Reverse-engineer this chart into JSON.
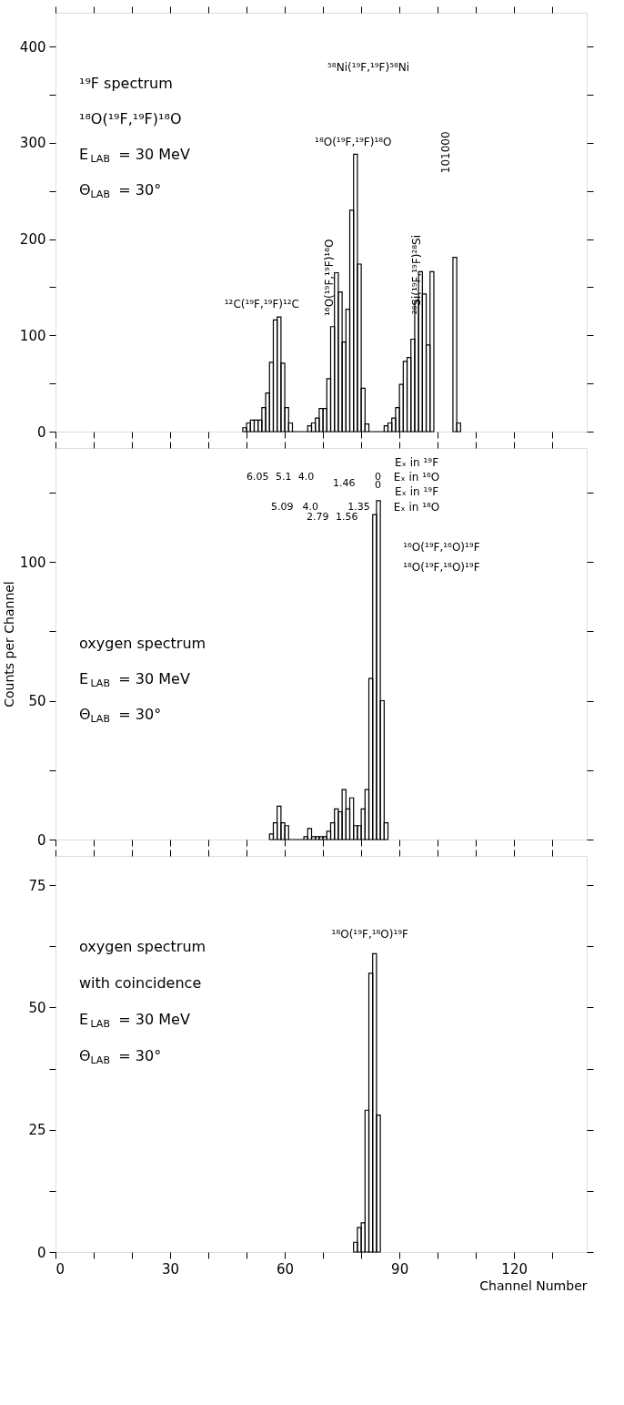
{
  "chart_data": [
    {
      "type": "histogram",
      "color": "#000000",
      "bins": [
        49,
        50,
        51,
        52,
        53,
        54,
        55,
        56,
        57,
        58,
        59,
        60,
        61,
        62,
        63,
        64,
        65,
        66,
        67,
        68,
        69,
        70,
        71,
        72,
        73,
        74,
        75,
        76,
        77,
        78,
        79,
        80,
        81,
        82,
        83,
        84,
        85,
        86,
        87,
        88,
        89,
        90,
        91,
        92,
        93,
        94,
        95,
        96,
        97,
        98,
        99,
        100,
        101,
        102,
        103,
        104,
        105,
        106
      ],
      "values": [
        4,
        9,
        12,
        12,
        12,
        25,
        40,
        72,
        116,
        119,
        71,
        25,
        9,
        0,
        0,
        0,
        0,
        6,
        9,
        14,
        24,
        24,
        55,
        109,
        165,
        145,
        93,
        127,
        230,
        288,
        174,
        45,
        8,
        0,
        0,
        0,
        0,
        6,
        9,
        14,
        25,
        49,
        73,
        77,
        96,
        136,
        166,
        143,
        90,
        166,
        null,
        null,
        null,
        null,
        null,
        181,
        9
      ],
      "xlim": [
        0,
        139
      ],
      "xticks": [
        {
          "value": 0,
          "label": null
        },
        {
          "value": 10,
          "label": null
        },
        {
          "value": 20,
          "label": null
        },
        {
          "value": 30,
          "label": null
        },
        {
          "value": 40,
          "label": null
        },
        {
          "value": 50,
          "label": null
        },
        {
          "value": 60,
          "label": null
        },
        {
          "value": 70,
          "label": null
        },
        {
          "value": 80,
          "label": null
        },
        {
          "value": 90,
          "label": null
        },
        {
          "value": 100,
          "label": null
        },
        {
          "value": 110,
          "label": null
        },
        {
          "value": 120,
          "label": null
        },
        {
          "value": 130,
          "label": null
        }
      ],
      "ylim": [
        0,
        435
      ],
      "yticks": [
        0,
        {
          "value": 50,
          "label": null
        },
        100,
        {
          "value": 150,
          "label": null
        },
        200,
        {
          "value": 250,
          "label": null
        },
        300,
        {
          "value": 350,
          "label": null
        },
        400
      ],
      "tick_labels": "y",
      "annotations": [
        "¹⁹F spectrum",
        "¹⁸O(¹⁹F,¹⁹F)¹⁸O",
        "E$_{LAB}$ = 30 MeV",
        "Θ$_{LAB}$ = 30°",
        "¹²C(¹⁹F,¹⁹F)¹²C",
        "¹⁶O(¹⁹F,¹⁹F)¹⁶O",
        "¹⁸O(¹⁹F,¹⁹F)¹⁸O",
        "²⁸Si(¹⁹F,¹⁹F)²⁸Si",
        "⁵⁸Ni(¹⁹F,¹⁹F)⁵⁸Ni",
        "101000"
      ]
    },
    {
      "type": "histogram",
      "color": "#000000",
      "bins": [
        56,
        57,
        58,
        59,
        60,
        61,
        62,
        63,
        64,
        65,
        66,
        67,
        68,
        69,
        70,
        71,
        72,
        73,
        74,
        75,
        76,
        77,
        78,
        79,
        80,
        81,
        82,
        83,
        84,
        85,
        86,
        87
      ],
      "values": [
        2,
        6,
        12,
        6,
        5,
        0,
        0,
        0,
        0,
        1,
        4,
        1,
        1,
        1,
        1,
        3,
        6,
        11,
        10,
        18,
        11,
        15,
        5,
        5,
        11,
        18,
        58,
        117,
        122,
        50,
        6
      ],
      "xlim": [
        0,
        139
      ],
      "xticks": [
        {
          "value": 0,
          "label": null
        },
        {
          "value": 10,
          "label": null
        },
        {
          "value": 20,
          "label": null
        },
        {
          "value": 30,
          "label": null
        },
        {
          "value": 40,
          "label": null
        },
        {
          "value": 50,
          "label": null
        },
        {
          "value": 60,
          "label": null
        },
        {
          "value": 70,
          "label": null
        },
        {
          "value": 80,
          "label": null
        },
        {
          "value": 90,
          "label": null
        },
        {
          "value": 100,
          "label": null
        },
        {
          "value": 110,
          "label": null
        },
        {
          "value": 120,
          "label": null
        },
        {
          "value": 130,
          "label": null
        }
      ],
      "ylim": [
        0,
        141
      ],
      "yticks": [
        0,
        {
          "value": 25,
          "label": null
        },
        50,
        {
          "value": 75,
          "label": null
        },
        100,
        {
          "value": 125,
          "label": null
        }
      ],
      "tick_labels": "y",
      "ylabel": "Counts per Channel",
      "annotations": [
        "oxygen spectrum",
        "E$_{LAB}$ = 30 MeV",
        "Θ$_{LAB}$ = 30°",
        "Eₓ in ¹⁹F",
        "6.05",
        "5.1",
        "4.0",
        "1.46",
        "0",
        "Eₓ in ¹⁶O",
        "0",
        "Eₓ in ¹⁹F",
        "5.09",
        "4.0",
        "1.35",
        "2.79",
        "1.56",
        "Eₓ in ¹⁸O",
        "¹⁶O(¹⁹F,¹⁶O)¹⁹F",
        "¹⁸O(¹⁹F,¹⁸O)¹⁹F"
      ]
    },
    {
      "type": "histogram",
      "color": "#000000",
      "bins": [
        78,
        79,
        80,
        81,
        82,
        83,
        84,
        85
      ],
      "values": [
        2,
        5,
        6,
        29,
        57,
        61,
        28
      ],
      "xlim": [
        0,
        139
      ],
      "xticks": [
        0,
        {
          "value": 10,
          "label": null
        },
        {
          "value": 20,
          "label": null
        },
        30,
        {
          "value": 40,
          "label": null
        },
        {
          "value": 50,
          "label": null
        },
        60,
        {
          "value": 70,
          "label": null
        },
        {
          "value": 80,
          "label": null
        },
        90,
        {
          "value": 100,
          "label": null
        },
        {
          "value": 110,
          "label": null
        },
        120,
        {
          "value": 130,
          "label": null
        }
      ],
      "ylim": [
        0,
        81
      ],
      "yticks": [
        0,
        {
          "value": 12.5,
          "label": null
        },
        25,
        {
          "value": 37.5,
          "label": null
        },
        50,
        {
          "value": 62.5,
          "label": null
        },
        75
      ],
      "xlabel": "Channel Number",
      "annotations": [
        "oxygen spectrum",
        "with coincidence",
        "E$_{LAB}$ = 30 MeV",
        "Θ$_{LAB}$ = 30°",
        "¹⁸O(¹⁹F,¹⁸O)¹⁹F"
      ]
    }
  ]
}
